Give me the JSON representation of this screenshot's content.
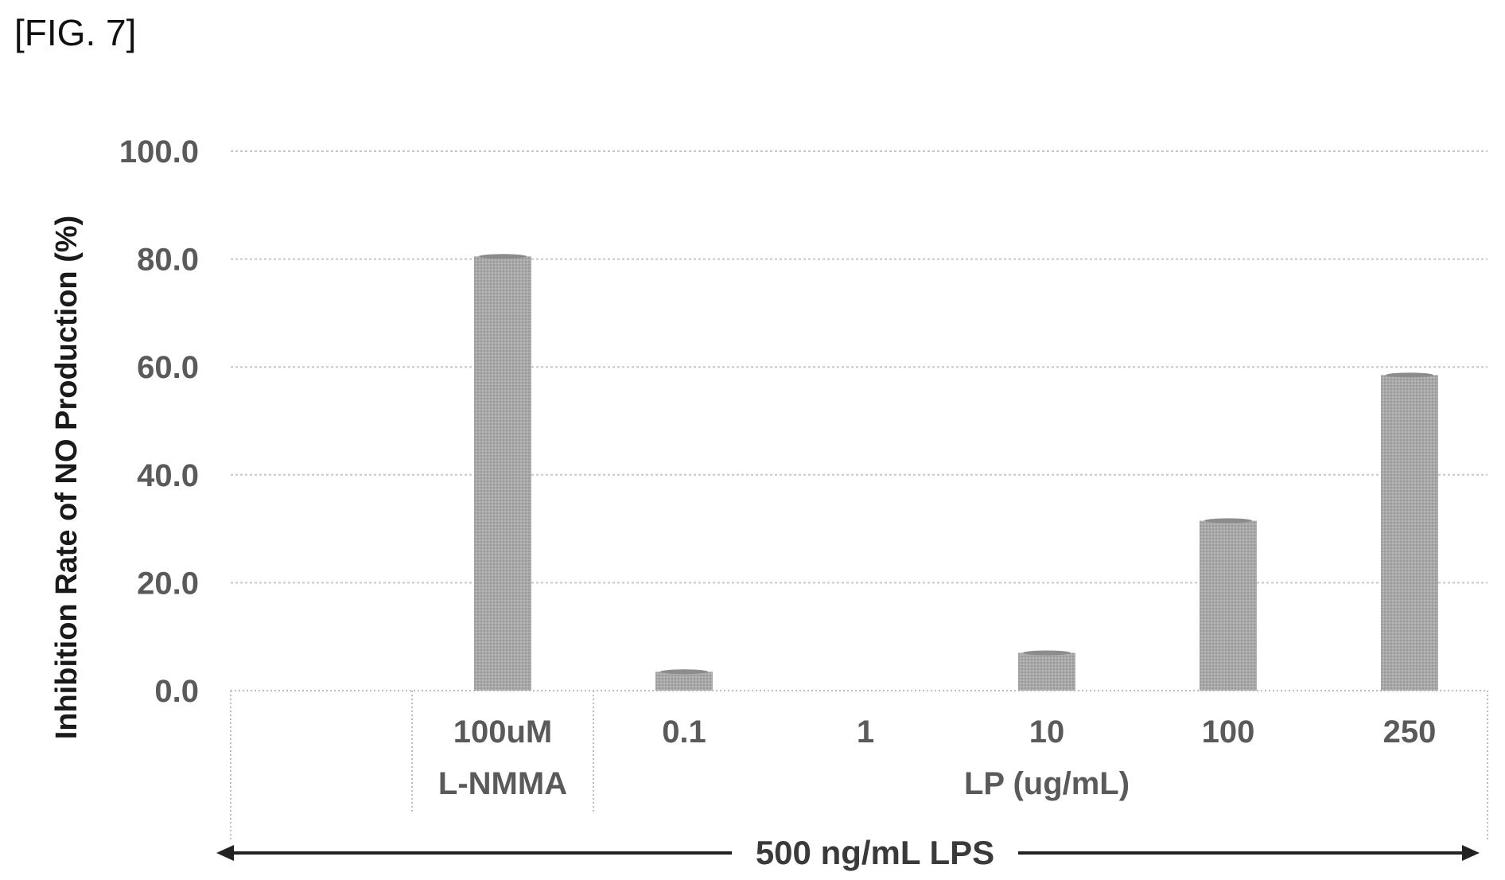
{
  "figure_label": "[FIG. 7]",
  "chart_data": {
    "type": "bar",
    "ylabel": "Inhibition Rate of NO Production (%)",
    "ylim": [
      0,
      100
    ],
    "yticks": [
      "0.0",
      "20.0",
      "40.0",
      "60.0",
      "80.0",
      "100.0"
    ],
    "ytick_values": [
      0,
      20,
      40,
      60,
      80,
      100
    ],
    "grid": true,
    "categories": [
      "",
      "100uM",
      "0.1",
      "1",
      "10",
      "100",
      "250"
    ],
    "values": [
      null,
      80.5,
      3.5,
      0,
      7,
      31.5,
      58.5
    ],
    "groups": [
      {
        "label": "L-NMMA",
        "categories": [
          "100uM"
        ]
      },
      {
        "label": "LP (ug/mL)",
        "categories": [
          "0.1",
          "1",
          "10",
          "100",
          "250"
        ]
      }
    ],
    "span_annotation": "500 ng/mL LPS",
    "colors": {
      "bar": "#a9a9a9",
      "grid": "#c8c8c8",
      "text": "#5a5a5a"
    }
  }
}
